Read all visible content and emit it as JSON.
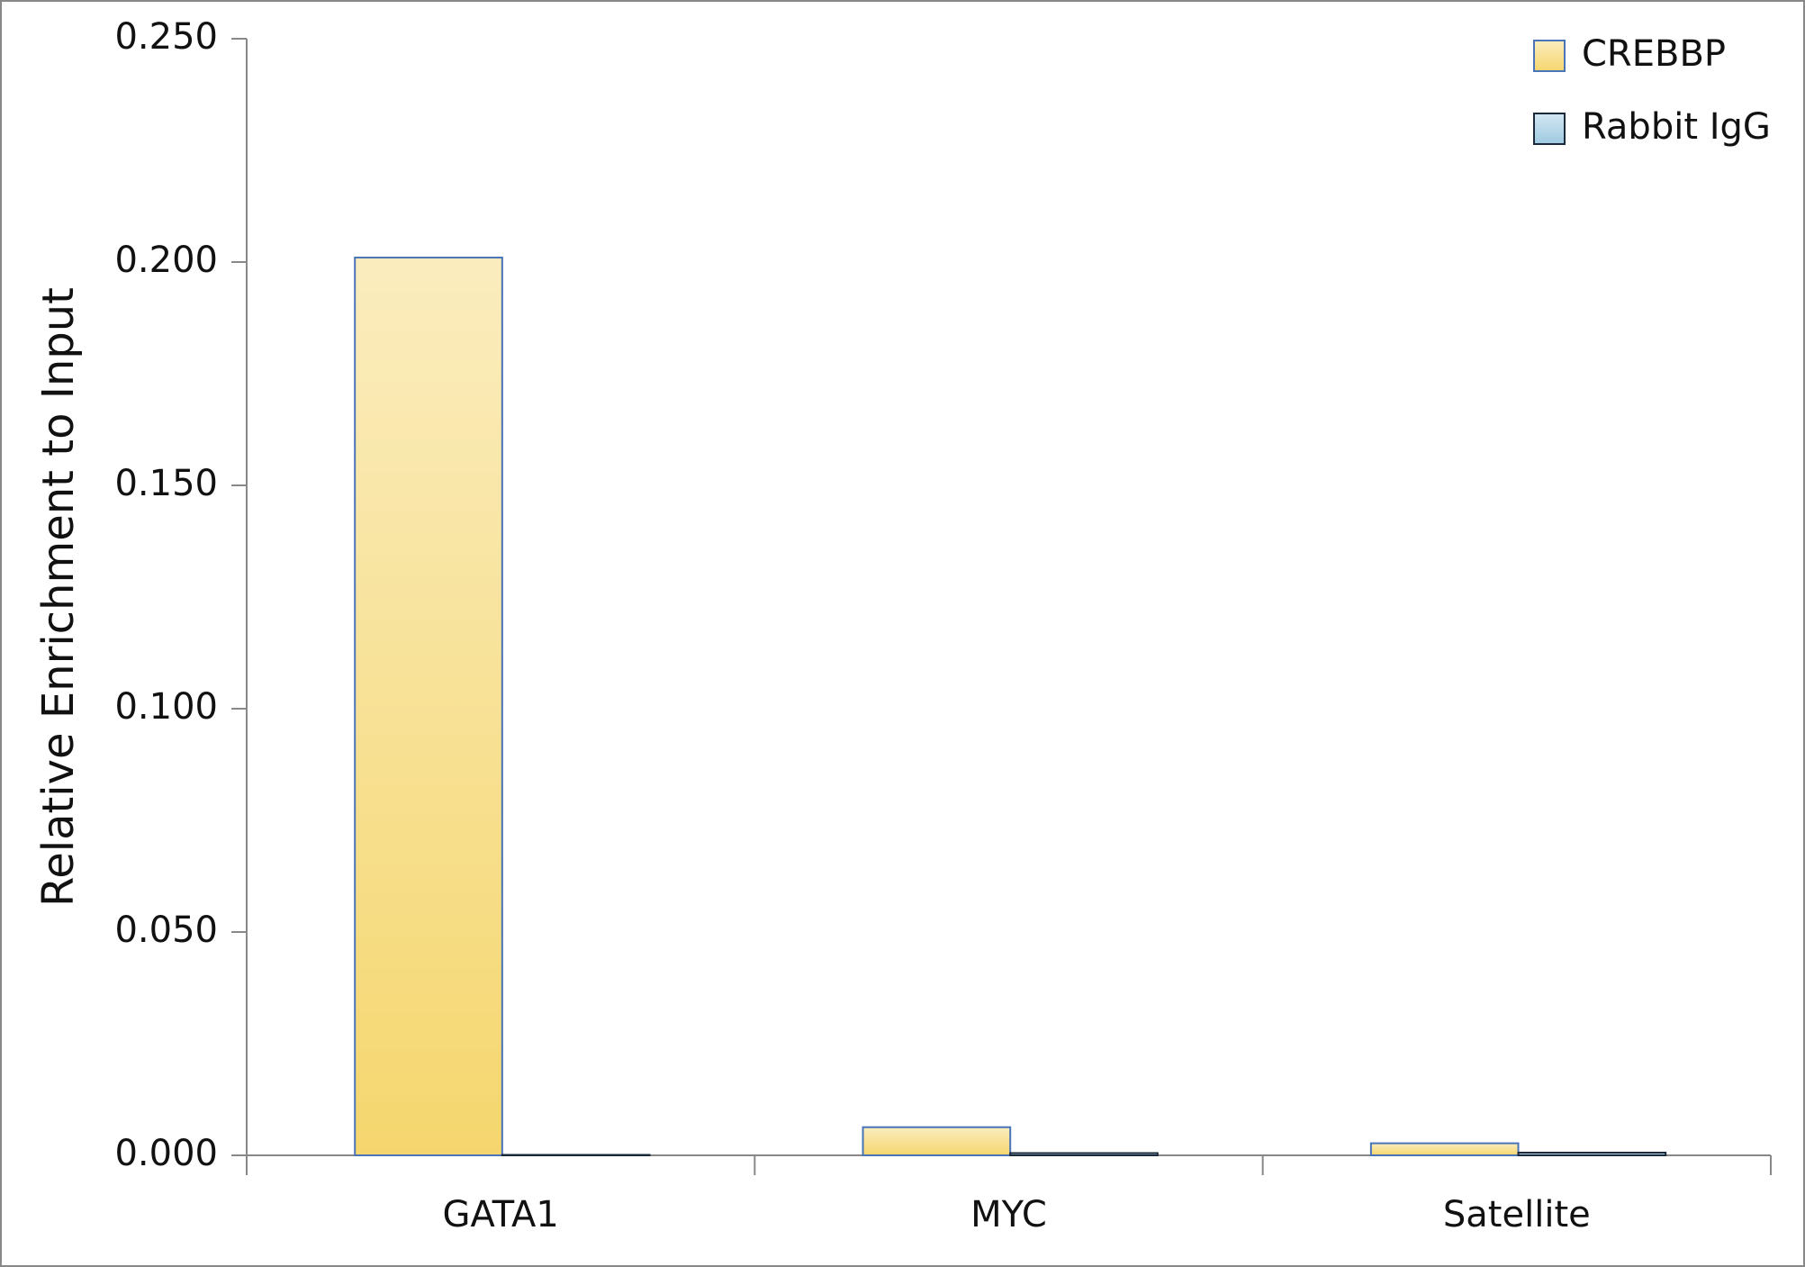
{
  "chart_data": {
    "type": "bar",
    "y_label": "Relative Enrichment to Input",
    "categories": [
      "GATA1",
      "MYC",
      "Satellite"
    ],
    "series": [
      {
        "name": "CREBBP",
        "color": "#f5d66e",
        "values": [
          0.201,
          0.0063,
          0.0027
        ]
      },
      {
        "name": "Rabbit IgG",
        "color": "#9ecae1",
        "values": [
          0.0001,
          0.0005,
          0.0006
        ]
      }
    ],
    "ylim": [
      0,
      0.25
    ],
    "yticks": [
      {
        "value": 0,
        "label": "0.000"
      },
      {
        "value": 0.05,
        "label": "0.050"
      },
      {
        "value": 0.1,
        "label": "0.100"
      },
      {
        "value": 0.15,
        "label": "0.150"
      },
      {
        "value": 0.2,
        "label": "0.200"
      },
      {
        "value": 0.25,
        "label": "0.250"
      }
    ],
    "legend": "top-right"
  }
}
